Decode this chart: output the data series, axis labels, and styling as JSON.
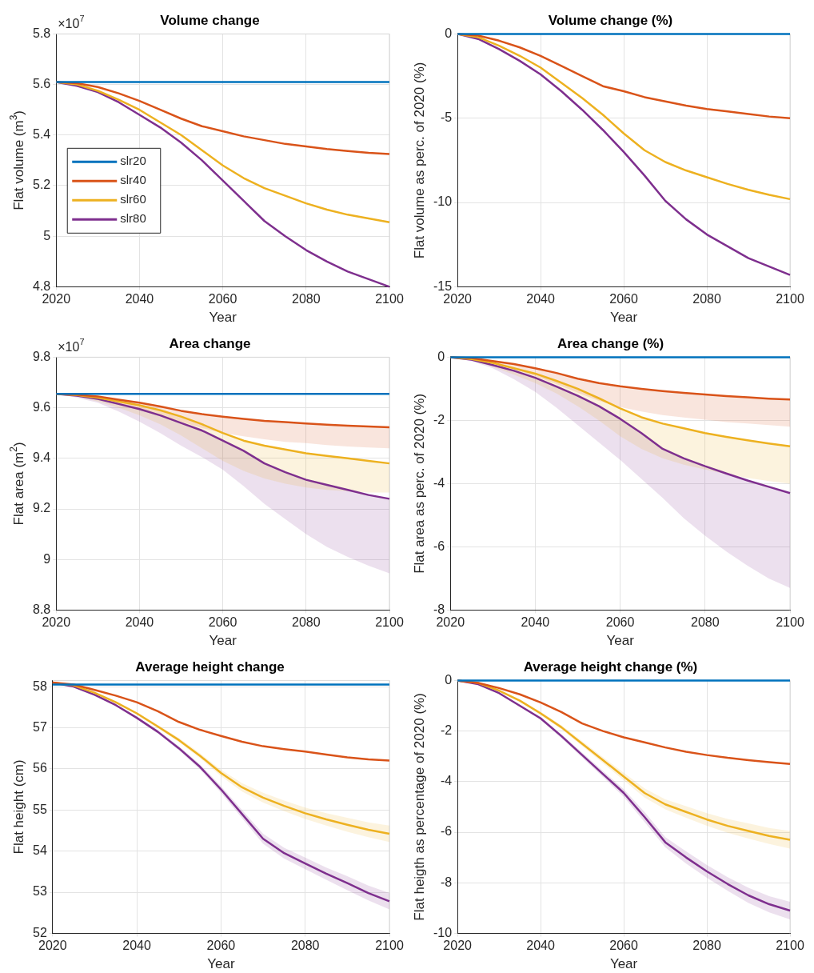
{
  "chart_data": [
    {
      "type": "line",
      "title": "Volume change",
      "xlabel": "Year",
      "ylabel": "Flat volume (m$^{3}$)",
      "annotations": [
        "×10$^{7}$"
      ],
      "x": [
        2020,
        2025,
        2030,
        2035,
        2040,
        2045,
        2050,
        2055,
        2060,
        2065,
        2070,
        2075,
        2080,
        2085,
        2090,
        2095,
        2100
      ],
      "xlim": [
        2020,
        2100
      ],
      "xticks": [
        2020,
        2040,
        2060,
        2080,
        2100
      ],
      "ylim": [
        4.8,
        5.8
      ],
      "yticks": [
        4.8,
        5,
        5.2,
        5.4,
        5.6,
        5.8
      ],
      "grid": true,
      "legend": "left",
      "marker": "none",
      "line_style": "solid",
      "series": [
        {
          "name": "slr20",
          "color": "#0072bd",
          "values": [
            5.61,
            5.61,
            5.61,
            5.61,
            5.61,
            5.61,
            5.61,
            5.61,
            5.61,
            5.61,
            5.61,
            5.61,
            5.61,
            5.61,
            5.61,
            5.61,
            5.61
          ]
        },
        {
          "name": "slr40",
          "color": "#d95319",
          "values": [
            5.61,
            5.605,
            5.59,
            5.565,
            5.535,
            5.5,
            5.465,
            5.435,
            5.415,
            5.395,
            5.38,
            5.365,
            5.355,
            5.345,
            5.337,
            5.33,
            5.325
          ]
        },
        {
          "name": "slr60",
          "color": "#edb120",
          "values": [
            5.61,
            5.6,
            5.575,
            5.54,
            5.5,
            5.45,
            5.4,
            5.34,
            5.28,
            5.23,
            5.19,
            5.16,
            5.13,
            5.105,
            5.085,
            5.07,
            5.055
          ]
        },
        {
          "name": "slr80",
          "color": "#7e2f8e",
          "values": [
            5.61,
            5.595,
            5.57,
            5.53,
            5.48,
            5.43,
            5.37,
            5.3,
            5.22,
            5.14,
            5.06,
            5,
            4.945,
            4.9,
            4.86,
            4.83,
            4.8
          ]
        }
      ]
    },
    {
      "type": "line",
      "title": "Volume change (%)",
      "xlabel": "Year",
      "ylabel": "Flat volume as perc. of 2020 (%)",
      "x": [
        2020,
        2025,
        2030,
        2035,
        2040,
        2045,
        2050,
        2055,
        2060,
        2065,
        2070,
        2075,
        2080,
        2085,
        2090,
        2095,
        2100
      ],
      "xlim": [
        2020,
        2100
      ],
      "xticks": [
        2020,
        2040,
        2060,
        2080,
        2100
      ],
      "ylim": [
        -15,
        0
      ],
      "yticks": [
        -15,
        -10,
        -5,
        0
      ],
      "grid": true,
      "marker": "none",
      "line_style": "solid",
      "series": [
        {
          "color": "#0072bd",
          "values": [
            0,
            0,
            0,
            0,
            0,
            0,
            0,
            0,
            0,
            0,
            0,
            0,
            0,
            0,
            0,
            0,
            0
          ]
        },
        {
          "color": "#d95319",
          "values": [
            0,
            -0.1,
            -0.4,
            -0.8,
            -1.3,
            -1.9,
            -2.5,
            -3.1,
            -3.4,
            -3.75,
            -4,
            -4.25,
            -4.45,
            -4.6,
            -4.75,
            -4.9,
            -5
          ]
        },
        {
          "color": "#edb120",
          "values": [
            0,
            -0.2,
            -0.7,
            -1.3,
            -2,
            -2.9,
            -3.8,
            -4.8,
            -5.9,
            -6.9,
            -7.6,
            -8.1,
            -8.5,
            -8.9,
            -9.25,
            -9.55,
            -9.8
          ]
        },
        {
          "color": "#7e2f8e",
          "values": [
            0,
            -0.3,
            -0.9,
            -1.6,
            -2.4,
            -3.4,
            -4.5,
            -5.7,
            -7,
            -8.4,
            -9.9,
            -11,
            -11.9,
            -12.6,
            -13.3,
            -13.8,
            -14.3
          ]
        }
      ]
    },
    {
      "type": "line",
      "title": "Area change",
      "xlabel": "Year",
      "ylabel": "Flat area (m$^{2}$)",
      "annotations": [
        "×10$^{7}$"
      ],
      "x": [
        2020,
        2025,
        2030,
        2035,
        2040,
        2045,
        2050,
        2055,
        2060,
        2065,
        2070,
        2075,
        2080,
        2085,
        2090,
        2095,
        2100
      ],
      "xlim": [
        2020,
        2100
      ],
      "xticks": [
        2020,
        2040,
        2060,
        2080,
        2100
      ],
      "ylim": [
        8.8,
        9.8
      ],
      "yticks": [
        8.8,
        9,
        9.2,
        9.4,
        9.6,
        9.8
      ],
      "grid": true,
      "marker": "none",
      "line_style": "solid",
      "series": [
        {
          "color": "#0072bd",
          "values": [
            9.655,
            9.655,
            9.655,
            9.655,
            9.655,
            9.655,
            9.655,
            9.655,
            9.655,
            9.655,
            9.655,
            9.655,
            9.655,
            9.655,
            9.655,
            9.655,
            9.655
          ]
        },
        {
          "color": "#d95319",
          "values": [
            9.655,
            9.652,
            9.645,
            9.632,
            9.62,
            9.605,
            9.588,
            9.575,
            9.565,
            9.556,
            9.548,
            9.543,
            9.538,
            9.533,
            9.529,
            9.526,
            9.523
          ],
          "lower": [
            9.655,
            9.648,
            9.635,
            9.615,
            9.595,
            9.57,
            9.545,
            9.52,
            9.5,
            9.487,
            9.475,
            9.465,
            9.46,
            9.452,
            9.447,
            9.443,
            9.44
          ],
          "upper": [
            9.655,
            9.652,
            9.645,
            9.632,
            9.62,
            9.605,
            9.588,
            9.575,
            9.565,
            9.556,
            9.548,
            9.543,
            9.538,
            9.533,
            9.529,
            9.526,
            9.523
          ]
        },
        {
          "color": "#edb120",
          "values": [
            9.655,
            9.65,
            9.64,
            9.625,
            9.61,
            9.59,
            9.565,
            9.535,
            9.5,
            9.47,
            9.45,
            9.435,
            9.42,
            9.41,
            9.4,
            9.39,
            9.38
          ],
          "lower": [
            9.655,
            9.645,
            9.625,
            9.6,
            9.57,
            9.535,
            9.49,
            9.44,
            9.39,
            9.35,
            9.32,
            9.3,
            9.285,
            9.275,
            9.27,
            9.265,
            9.265
          ],
          "upper": [
            9.655,
            9.65,
            9.64,
            9.625,
            9.61,
            9.59,
            9.565,
            9.535,
            9.5,
            9.47,
            9.45,
            9.435,
            9.42,
            9.41,
            9.4,
            9.39,
            9.38
          ]
        },
        {
          "color": "#7e2f8e",
          "values": [
            9.655,
            9.648,
            9.635,
            9.615,
            9.595,
            9.57,
            9.54,
            9.51,
            9.47,
            9.43,
            9.38,
            9.345,
            9.315,
            9.295,
            9.275,
            9.255,
            9.24
          ],
          "lower": [
            9.655,
            9.64,
            9.62,
            9.585,
            9.545,
            9.5,
            9.45,
            9.405,
            9.355,
            9.29,
            9.22,
            9.16,
            9.1,
            9.05,
            9.01,
            8.975,
            8.945
          ],
          "upper": [
            9.655,
            9.648,
            9.635,
            9.615,
            9.595,
            9.57,
            9.54,
            9.51,
            9.47,
            9.43,
            9.38,
            9.345,
            9.315,
            9.295,
            9.275,
            9.255,
            9.24
          ]
        }
      ]
    },
    {
      "type": "line",
      "title": "Area change (%)",
      "xlabel": "Year",
      "ylabel": "Flat area as perc. of 2020 (%)",
      "x": [
        2020,
        2025,
        2030,
        2035,
        2040,
        2045,
        2050,
        2055,
        2060,
        2065,
        2070,
        2075,
        2080,
        2085,
        2090,
        2095,
        2100
      ],
      "xlim": [
        2020,
        2100
      ],
      "xticks": [
        2020,
        2040,
        2060,
        2080,
        2100
      ],
      "ylim": [
        -8,
        0
      ],
      "yticks": [
        -8,
        -6,
        -4,
        -2,
        0
      ],
      "grid": true,
      "marker": "none",
      "line_style": "solid",
      "series": [
        {
          "color": "#0072bd",
          "values": [
            0,
            0,
            0,
            0,
            0,
            0,
            0,
            0,
            0,
            0,
            0,
            0,
            0,
            0,
            0,
            0,
            0
          ]
        },
        {
          "color": "#d95319",
          "values": [
            0,
            -0.03,
            -0.12,
            -0.22,
            -0.35,
            -0.5,
            -0.68,
            -0.82,
            -0.92,
            -1,
            -1.07,
            -1.13,
            -1.18,
            -1.23,
            -1.27,
            -1.31,
            -1.34
          ],
          "lower": [
            0,
            -0.07,
            -0.2,
            -0.38,
            -0.6,
            -0.85,
            -1.12,
            -1.38,
            -1.58,
            -1.72,
            -1.83,
            -1.91,
            -1.98,
            -2.05,
            -2.1,
            -2.15,
            -2.2
          ],
          "upper": [
            0,
            -0.03,
            -0.12,
            -0.22,
            -0.35,
            -0.5,
            -0.68,
            -0.82,
            -0.92,
            -1,
            -1.07,
            -1.13,
            -1.18,
            -1.23,
            -1.27,
            -1.31,
            -1.34
          ]
        },
        {
          "color": "#edb120",
          "values": [
            0,
            -0.06,
            -0.18,
            -0.35,
            -0.52,
            -0.75,
            -1,
            -1.3,
            -1.62,
            -1.9,
            -2.1,
            -2.25,
            -2.4,
            -2.52,
            -2.63,
            -2.73,
            -2.82
          ],
          "lower": [
            0,
            -0.1,
            -0.3,
            -0.55,
            -0.82,
            -1.15,
            -1.55,
            -2,
            -2.5,
            -2.9,
            -3.2,
            -3.4,
            -3.55,
            -3.7,
            -3.82,
            -3.92,
            -4
          ],
          "upper": [
            0,
            -0.06,
            -0.18,
            -0.35,
            -0.52,
            -0.75,
            -1,
            -1.3,
            -1.62,
            -1.9,
            -2.1,
            -2.25,
            -2.4,
            -2.52,
            -2.63,
            -2.73,
            -2.82
          ]
        },
        {
          "color": "#7e2f8e",
          "values": [
            0,
            -0.08,
            -0.25,
            -0.43,
            -0.65,
            -0.93,
            -1.22,
            -1.55,
            -1.95,
            -2.4,
            -2.9,
            -3.2,
            -3.45,
            -3.68,
            -3.9,
            -4.1,
            -4.3
          ],
          "lower": [
            0,
            -0.12,
            -0.35,
            -0.7,
            -1.1,
            -1.6,
            -2.15,
            -2.7,
            -3.25,
            -3.85,
            -4.45,
            -5.1,
            -5.65,
            -6.15,
            -6.6,
            -7,
            -7.3
          ],
          "upper": [
            0,
            -0.08,
            -0.25,
            -0.43,
            -0.65,
            -0.93,
            -1.22,
            -1.55,
            -1.95,
            -2.4,
            -2.9,
            -3.2,
            -3.45,
            -3.68,
            -3.9,
            -4.1,
            -4.3
          ]
        }
      ]
    },
    {
      "type": "line",
      "title": "Average height change",
      "xlabel": "Year",
      "ylabel": "Flat height (cm)",
      "x": [
        2020,
        2025,
        2030,
        2035,
        2040,
        2045,
        2050,
        2055,
        2060,
        2065,
        2070,
        2075,
        2080,
        2085,
        2090,
        2095,
        2100
      ],
      "xlim": [
        2020,
        2100
      ],
      "xticks": [
        2020,
        2040,
        2060,
        2080,
        2100
      ],
      "ylim": [
        52,
        58.15
      ],
      "yticks": [
        52,
        53,
        54,
        55,
        56,
        57,
        58
      ],
      "grid": true,
      "marker": "none",
      "line_style": "solid",
      "series": [
        {
          "color": "#0072bd",
          "values": [
            58.05,
            58.05,
            58.05,
            58.05,
            58.05,
            58.05,
            58.05,
            58.05,
            58.05,
            58.05,
            58.05,
            58.05,
            58.05,
            58.05,
            58.05,
            58.05,
            58.05
          ]
        },
        {
          "color": "#d95319",
          "values": [
            58.1,
            58.05,
            57.92,
            57.78,
            57.62,
            57.4,
            57.14,
            56.95,
            56.8,
            56.66,
            56.55,
            56.48,
            56.42,
            56.35,
            56.28,
            56.23,
            56.2
          ]
        },
        {
          "color": "#edb120",
          "values": [
            58.1,
            58.03,
            57.85,
            57.62,
            57.35,
            57.03,
            56.7,
            56.32,
            55.9,
            55.55,
            55.3,
            55.1,
            54.92,
            54.77,
            54.64,
            54.52,
            54.42
          ],
          "lower": [
            58.1,
            58.03,
            57.84,
            57.6,
            57.32,
            56.99,
            56.65,
            56.26,
            55.82,
            55.45,
            55.18,
            54.97,
            54.78,
            54.62,
            54.47,
            54.34,
            54.22
          ],
          "upper": [
            58.1,
            58.03,
            57.86,
            57.64,
            57.38,
            57.07,
            56.75,
            56.38,
            55.98,
            55.65,
            55.42,
            55.23,
            55.06,
            54.92,
            54.81,
            54.7,
            54.62
          ]
        },
        {
          "color": "#7e2f8e",
          "values": [
            58.1,
            58,
            57.8,
            57.55,
            57.24,
            56.9,
            56.5,
            56.05,
            55.5,
            54.9,
            54.3,
            53.95,
            53.7,
            53.45,
            53.22,
            52.98,
            52.78
          ],
          "lower": [
            58.1,
            58,
            57.79,
            57.53,
            57.21,
            56.86,
            56.45,
            55.99,
            55.42,
            54.8,
            54.18,
            53.82,
            53.56,
            53.3,
            53.05,
            52.8,
            52.58
          ],
          "upper": [
            58.1,
            58,
            57.81,
            57.57,
            57.27,
            56.94,
            56.55,
            56.11,
            55.58,
            55,
            54.42,
            54.08,
            53.84,
            53.6,
            53.39,
            53.16,
            52.98
          ]
        }
      ]
    },
    {
      "type": "line",
      "title": "Average height change (%)",
      "xlabel": "Year",
      "ylabel": "Flat heigth as percentage of 2020 (%)",
      "x": [
        2020,
        2025,
        2030,
        2035,
        2040,
        2045,
        2050,
        2055,
        2060,
        2065,
        2070,
        2075,
        2080,
        2085,
        2090,
        2095,
        2100
      ],
      "xlim": [
        2020,
        2100
      ],
      "xticks": [
        2020,
        2040,
        2060,
        2080,
        2100
      ],
      "ylim": [
        -10,
        0
      ],
      "yticks": [
        -10,
        -8,
        -6,
        -4,
        -2,
        0
      ],
      "grid": true,
      "marker": "none",
      "line_style": "solid",
      "series": [
        {
          "color": "#0072bd",
          "values": [
            0,
            0,
            0,
            0,
            0,
            0,
            0,
            0,
            0,
            0,
            0,
            0,
            0,
            0,
            0,
            0,
            0
          ]
        },
        {
          "color": "#d95319",
          "values": [
            0,
            -0.1,
            -0.3,
            -0.55,
            -0.87,
            -1.25,
            -1.7,
            -2,
            -2.25,
            -2.45,
            -2.65,
            -2.82,
            -2.95,
            -3.06,
            -3.15,
            -3.23,
            -3.3
          ]
        },
        {
          "color": "#edb120",
          "values": [
            0,
            -0.1,
            -0.4,
            -0.8,
            -1.3,
            -1.85,
            -2.5,
            -3.15,
            -3.8,
            -4.45,
            -4.9,
            -5.2,
            -5.5,
            -5.75,
            -5.95,
            -6.15,
            -6.3
          ],
          "lower": [
            0,
            -0.1,
            -0.42,
            -0.84,
            -1.36,
            -1.93,
            -2.6,
            -3.27,
            -3.95,
            -4.63,
            -5.1,
            -5.43,
            -5.75,
            -6.02,
            -6.25,
            -6.47,
            -6.65
          ],
          "upper": [
            0,
            -0.1,
            -0.38,
            -0.76,
            -1.24,
            -1.77,
            -2.4,
            -3.03,
            -3.65,
            -4.27,
            -4.7,
            -4.97,
            -5.25,
            -5.48,
            -5.65,
            -5.83,
            -5.95
          ]
        },
        {
          "color": "#7e2f8e",
          "values": [
            0,
            -0.15,
            -0.5,
            -1,
            -1.5,
            -2.2,
            -2.95,
            -3.7,
            -4.45,
            -5.4,
            -6.4,
            -7,
            -7.55,
            -8.05,
            -8.5,
            -8.85,
            -9.1
          ],
          "lower": [
            0,
            -0.15,
            -0.52,
            -1.04,
            -1.56,
            -2.28,
            -3.05,
            -3.82,
            -4.6,
            -5.6,
            -6.6,
            -7.24,
            -7.8,
            -8.32,
            -8.8,
            -9.17,
            -9.45
          ],
          "upper": [
            0,
            -0.15,
            -0.48,
            -0.96,
            -1.44,
            -2.12,
            -2.85,
            -3.58,
            -4.3,
            -5.2,
            -6.2,
            -6.76,
            -7.3,
            -7.78,
            -8.2,
            -8.53,
            -8.75
          ]
        }
      ]
    }
  ]
}
